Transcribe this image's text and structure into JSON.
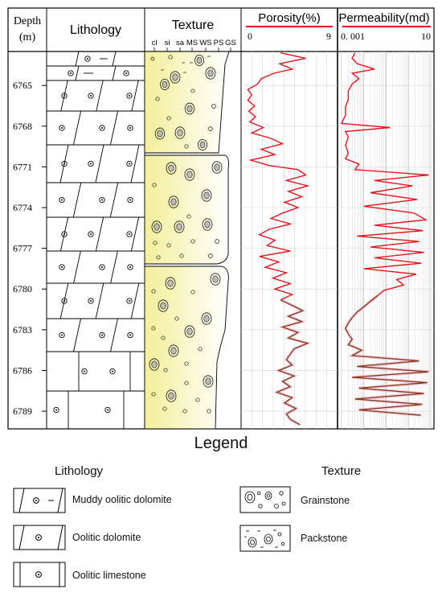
{
  "header": {
    "depth_label": "Depth",
    "depth_unit": "(m)",
    "lithology_label": "Lithology",
    "texture_label": "Texture",
    "texture_classes": [
      "cl",
      "si",
      "sa",
      "MS",
      "WS",
      "PS",
      "GS"
    ],
    "porosity_label": "Porosity(%)",
    "porosity_min": "0",
    "porosity_max": "9",
    "permeability_label": "Permeability(md)",
    "permeability_min": "0. 001",
    "permeability_max": "10"
  },
  "depth_ticks": [
    "6765",
    "6768",
    "6771",
    "6774",
    "6777",
    "6780",
    "6783",
    "6786",
    "6789"
  ],
  "legend": {
    "title": "Legend",
    "lithology_heading": "Lithology",
    "texture_heading": "Texture",
    "lithology_items": [
      "Muddy oolitic dolomite",
      "Oolitic dolomite",
      "Oolitic limestone"
    ],
    "texture_items": [
      "Grainstone",
      "Packstone"
    ]
  },
  "colors": {
    "porosity_upper": "#e8141c",
    "porosity_lower": "#8a3a1a",
    "texture_fill_left": "#f4ef9a",
    "texture_fill_right": "#ffffff"
  },
  "chart_data": {
    "type": "line",
    "depth_range": [
      6762.5,
      6790.3
    ],
    "porosity": {
      "xlim": [
        0,
        9
      ],
      "depth": [
        6762.6,
        6763.0,
        6763.4,
        6763.8,
        6764.1,
        6764.5,
        6764.9,
        6765.3,
        6765.7,
        6766.1,
        6766.5,
        6766.9,
        6767.3,
        6767.7,
        6768.1,
        6768.5,
        6768.9,
        6769.3,
        6769.7,
        6770.1,
        6770.5,
        6770.9,
        6771.2,
        6771.6,
        6772.0,
        6772.4,
        6772.8,
        6773.2,
        6773.6,
        6774.0,
        6774.4,
        6774.8,
        6775.2,
        6775.6,
        6776.0,
        6776.4,
        6776.8,
        6777.2,
        6777.6,
        6778.0,
        6778.4,
        6778.8,
        6779.2,
        6779.6,
        6780.0,
        6780.4,
        6780.8,
        6781.2,
        6781.6,
        6782.0,
        6782.4,
        6782.8,
        6783.2,
        6783.6,
        6784.0,
        6784.4,
        6784.8,
        6785.2,
        6785.6,
        6786.0,
        6786.4,
        6786.8,
        6787.2,
        6787.6,
        6788.0,
        6788.4,
        6788.8,
        6789.2,
        6789.6,
        6790.0
      ],
      "values": [
        3.6,
        6.2,
        3.5,
        4.8,
        2.9,
        1.6,
        1.2,
        0.2,
        0.6,
        0.2,
        0.9,
        0.3,
        1.0,
        0.4,
        1.8,
        0.6,
        2.6,
        3.8,
        1.6,
        3.0,
        0.5,
        2.4,
        5.4,
        6.2,
        4.2,
        6.4,
        4.4,
        5.8,
        4.0,
        5.4,
        3.8,
        2.6,
        4.6,
        2.4,
        1.4,
        3.0,
        2.2,
        4.6,
        1.4,
        3.4,
        2.0,
        4.2,
        2.8,
        4.6,
        3.0,
        4.8,
        3.6,
        4.8,
        5.9,
        4.4,
        5.8,
        3.8,
        5.4,
        4.4,
        6.4,
        5.0,
        4.6,
        4.2,
        4.8,
        3.4,
        5.0,
        3.8,
        4.6,
        3.2,
        4.8,
        4.0,
        5.2,
        4.2,
        4.6,
        5.6
      ]
    },
    "permeability": {
      "xlim": [
        0.001,
        10
      ],
      "scale": "log",
      "depth": [
        6762.6,
        6763.0,
        6763.4,
        6763.8,
        6764.1,
        6764.5,
        6764.9,
        6765.4,
        6766.0,
        6766.6,
        6767.2,
        6767.8,
        6768.1,
        6768.4,
        6768.8,
        6769.4,
        6770.0,
        6770.4,
        6770.8,
        6771.2,
        6771.6,
        6772.0,
        6772.4,
        6772.9,
        6773.4,
        6773.9,
        6774.4,
        6774.9,
        6775.3,
        6775.7,
        6776.1,
        6776.5,
        6776.9,
        6777.3,
        6777.7,
        6778.1,
        6778.5,
        6778.9,
        6779.3,
        6779.7,
        6780.1,
        6780.5,
        6780.9,
        6781.3,
        6781.7,
        6782.1,
        6782.5,
        6782.9,
        6783.3,
        6783.7,
        6784.1,
        6784.5,
        6784.9,
        6785.3,
        6785.7,
        6786.1,
        6786.5,
        6786.9,
        6787.3,
        6787.7,
        6788.1,
        6788.5,
        6788.9,
        6789.3
      ],
      "values": [
        0.004,
        0.003,
        0.005,
        0.03,
        0.003,
        0.006,
        0.003,
        0.002,
        0.002,
        0.0015,
        0.0015,
        0.001,
        0.15,
        0.0015,
        0.002,
        0.0015,
        0.002,
        0.0015,
        0.006,
        0.004,
        8.0,
        0.03,
        1.5,
        0.02,
        2.5,
        0.01,
        1.8,
        6.0,
        0.03,
        4.5,
        0.005,
        3.0,
        0.02,
        5.0,
        0.03,
        3.8,
        0.01,
        2.2,
        0.3,
        0.6,
        0.08,
        0.04,
        0.02,
        0.01,
        0.005,
        0.003,
        0.002,
        0.0015,
        0.002,
        0.003,
        0.002,
        0.008,
        0.003,
        3.0,
        0.005,
        8.0,
        0.003,
        7.0,
        0.006,
        5.0,
        0.004,
        4.2,
        0.006,
        3.6
      ]
    }
  }
}
